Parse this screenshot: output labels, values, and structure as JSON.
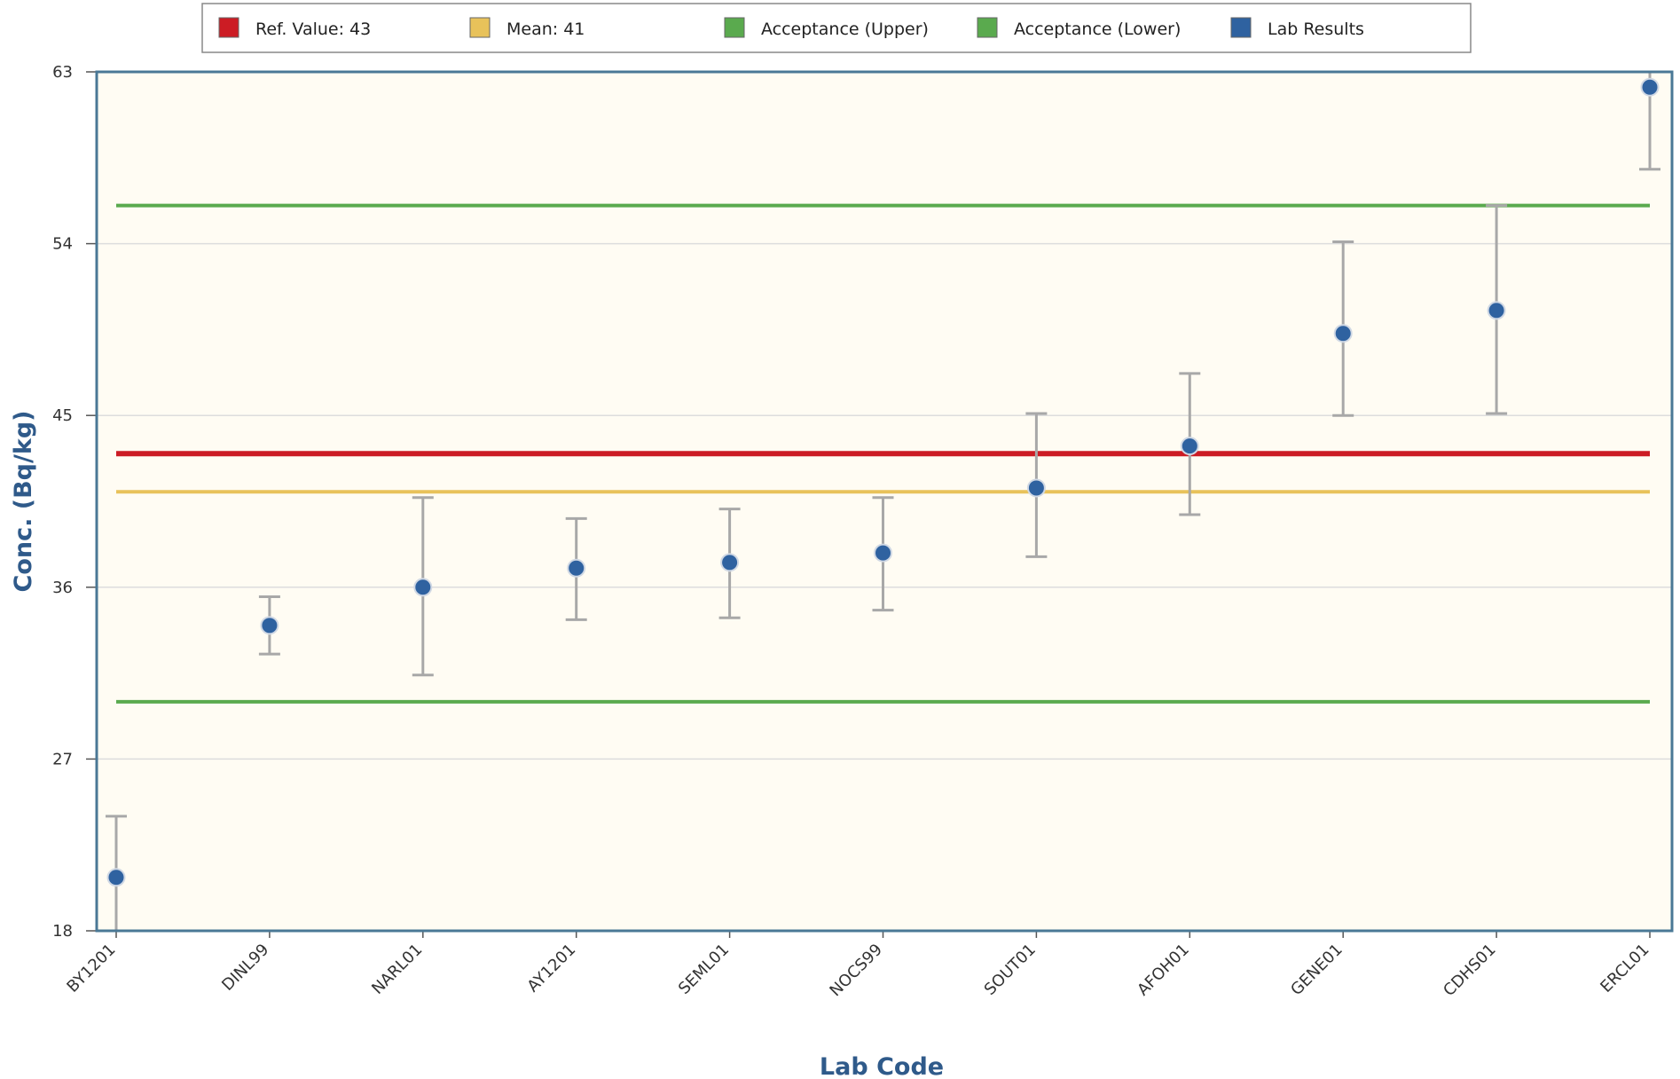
{
  "chart_data": {
    "type": "scatter",
    "xlabel": "Lab Code",
    "ylabel": "Conc. (Bq/kg)",
    "ylim": [
      18,
      63
    ],
    "yticks": [
      18,
      27,
      36,
      45,
      54,
      63
    ],
    "grid": true,
    "legend_position": "top",
    "categories": [
      "BY1201",
      "DINL99",
      "NARL01",
      "AY1201",
      "SEML01",
      "NOCS99",
      "SOUT01",
      "AFOH01",
      "GENE01",
      "CDHS01",
      "ERCL01"
    ],
    "series": [
      {
        "name": "Lab Results",
        "color": "#2f62a0",
        "values": [
          20.8,
          34.0,
          36.0,
          37.0,
          37.3,
          37.8,
          41.2,
          43.4,
          49.3,
          50.5,
          62.2
        ],
        "error_low": [
          18.0,
          32.5,
          31.4,
          34.3,
          34.4,
          34.8,
          37.6,
          39.8,
          45.0,
          45.1,
          57.9
        ],
        "error_high": [
          24.0,
          35.5,
          40.7,
          39.6,
          40.1,
          40.7,
          45.1,
          47.2,
          54.1,
          56.0,
          63.0
        ]
      }
    ],
    "reference_lines": [
      {
        "name": "Ref. Value: 43",
        "value": 43,
        "color": "#cc1c24"
      },
      {
        "name": "Mean: 41",
        "value": 41,
        "color": "#e8c25a"
      },
      {
        "name": "Acceptance (Upper)",
        "value": 56,
        "color": "#5aaa4e"
      },
      {
        "name": "Acceptance (Lower)",
        "value": 30,
        "color": "#5aaa4e"
      }
    ],
    "legend": [
      {
        "label": "Ref. Value: 43",
        "color": "#cc1c24"
      },
      {
        "label": "Mean: 41",
        "color": "#e8c25a"
      },
      {
        "label": "Acceptance (Upper)",
        "color": "#5aaa4e"
      },
      {
        "label": "Acceptance (Lower)",
        "color": "#5aaa4e"
      },
      {
        "label": "Lab Results",
        "color": "#2f62a0"
      }
    ],
    "colors": {
      "plot_background": "#fffcf3",
      "plot_border": "#4a7896",
      "error_bar": "#a8a8a8",
      "grid": "#dddddd"
    }
  }
}
